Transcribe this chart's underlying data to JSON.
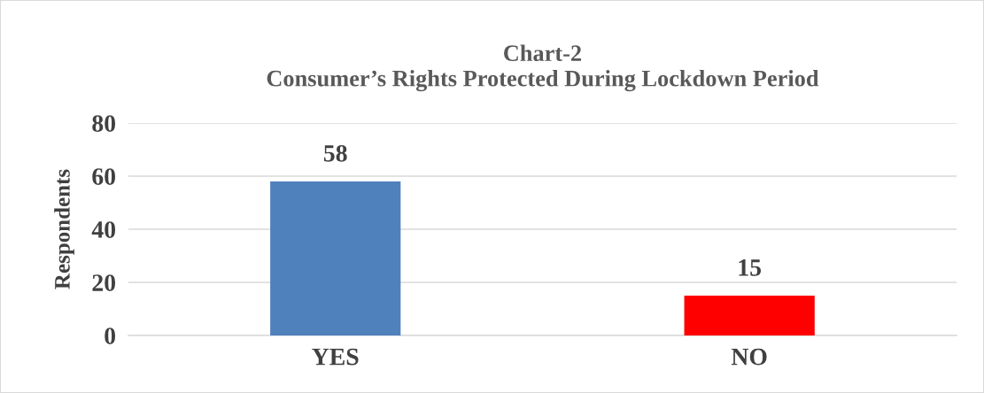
{
  "chart_data": {
    "type": "bar",
    "title": "Chart-2\nConsumer’s Rights Protected During Lockdown Period",
    "ylabel": "Respondents",
    "categories": [
      "YES",
      "NO"
    ],
    "values": [
      58,
      15
    ],
    "colors": [
      "#4f81bd",
      "#ff0000"
    ],
    "ylim": [
      0,
      80
    ],
    "yticks": [
      0,
      20,
      40,
      60,
      80
    ],
    "grid": "y",
    "data_labels": true
  }
}
